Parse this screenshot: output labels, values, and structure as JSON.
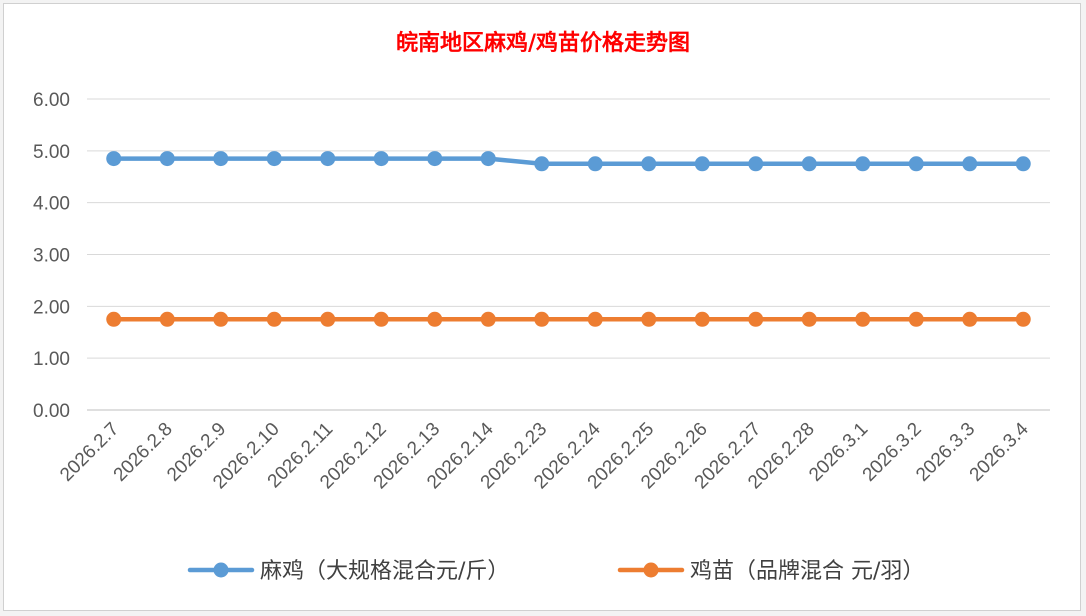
{
  "chart_data": {
    "type": "line",
    "title": "皖南地区麻鸡/鸡苗价格走势图",
    "categories": [
      "2026.2.7",
      "2026.2.8",
      "2026.2.9",
      "2026.2.10",
      "2026.2.11",
      "2026.2.12",
      "2026.2.13",
      "2026.2.14",
      "2026.2.23",
      "2026.2.24",
      "2026.2.25",
      "2026.2.26",
      "2026.2.27",
      "2026.2.28",
      "2026.3.1",
      "2026.3.2",
      "2026.3.3",
      "2026.3.4"
    ],
    "y_ticks": [
      "0.00",
      "1.00",
      "2.00",
      "3.00",
      "4.00",
      "5.00",
      "6.00"
    ],
    "ylim": [
      0,
      6
    ],
    "grid": true,
    "legend_position": "bottom",
    "series": [
      {
        "name": "麻鸡（大规格混合元/斤）",
        "color": "#5b9bd5",
        "values": [
          4.85,
          4.85,
          4.85,
          4.85,
          4.85,
          4.85,
          4.85,
          4.85,
          4.75,
          4.75,
          4.75,
          4.75,
          4.75,
          4.75,
          4.75,
          4.75,
          4.75,
          4.75
        ]
      },
      {
        "name": "鸡苗（品牌混合 元/羽）",
        "color": "#ed7d31",
        "values": [
          1.75,
          1.75,
          1.75,
          1.75,
          1.75,
          1.75,
          1.75,
          1.75,
          1.75,
          1.75,
          1.75,
          1.75,
          1.75,
          1.75,
          1.75,
          1.75,
          1.75,
          1.75
        ]
      }
    ],
    "title_color": "#ff0000"
  }
}
